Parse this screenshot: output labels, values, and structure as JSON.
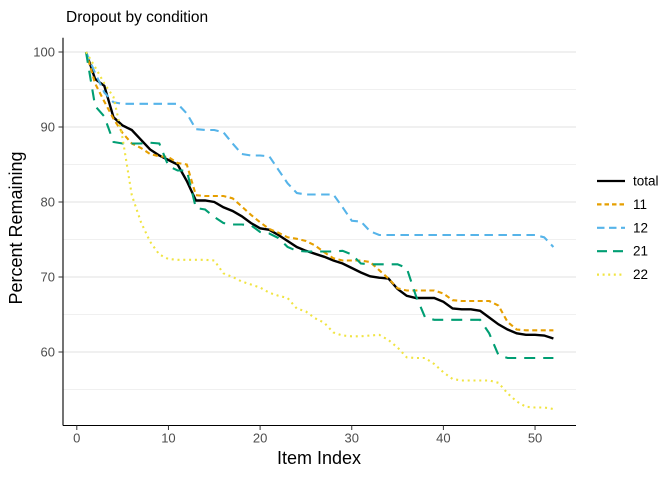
{
  "chart_data": {
    "type": "line",
    "title": "Dropout by condition",
    "xlabel": "Item Index",
    "ylabel": "Percent Remaining",
    "x_ticks": [
      0,
      10,
      20,
      30,
      40,
      50
    ],
    "y_ticks": [
      100,
      90,
      80,
      70,
      60
    ],
    "y_minor_gridlines": [
      95,
      85,
      75,
      65,
      55
    ],
    "xlim": [
      -1.5,
      54.5
    ],
    "ylim": [
      50.2,
      101.9
    ],
    "grid": "horizontal-only",
    "legend_position": "right-center",
    "x_start_index": 1,
    "legend_labels": [
      "total",
      "11",
      "12",
      "21",
      "22"
    ],
    "series": [
      {
        "name": "total",
        "color": "#000000",
        "linestyle": "solid",
        "values": [
          100,
          96.4,
          95.5,
          91.3,
          90.2,
          89.6,
          88.3,
          87.0,
          86.2,
          85.6,
          85.0,
          82.8,
          80.2,
          80.2,
          80.0,
          79.3,
          78.8,
          78.1,
          77.2,
          76.5,
          76.3,
          75.6,
          74.8,
          74.0,
          73.5,
          73.1,
          72.7,
          72.2,
          71.8,
          71.2,
          70.6,
          70.1,
          69.9,
          69.8,
          68.4,
          67.5,
          67.2,
          67.2,
          67.2,
          66.7,
          65.8,
          65.7,
          65.7,
          65.5,
          64.6,
          63.7,
          63.0,
          62.5,
          62.3,
          62.3,
          62.2,
          61.8
        ]
      },
      {
        "name": "11",
        "color": "#E69F00",
        "linestyle": "dashed",
        "values": [
          100,
          95.8,
          93.4,
          91.1,
          89.2,
          87.8,
          87.2,
          86.4,
          86.1,
          86.0,
          85.2,
          85.0,
          80.9,
          80.8,
          80.8,
          80.8,
          80.5,
          79.4,
          78.3,
          77.3,
          76.4,
          75.9,
          75.3,
          75.1,
          74.8,
          74.2,
          73.3,
          72.5,
          72.2,
          72.2,
          72.2,
          72.0,
          70.9,
          69.8,
          68.5,
          68.2,
          68.2,
          68.2,
          68.2,
          67.8,
          66.9,
          66.8,
          66.8,
          66.8,
          66.8,
          66.2,
          64.0,
          63.0,
          62.9,
          62.9,
          62.9,
          62.9
        ]
      },
      {
        "name": "12",
        "color": "#56B4E9",
        "linestyle": "longdash",
        "values": [
          100,
          97.2,
          94.6,
          93.3,
          93.1,
          93.1,
          93.1,
          93.1,
          93.1,
          93.1,
          93.1,
          91.8,
          89.7,
          89.6,
          89.6,
          89.3,
          87.8,
          86.4,
          86.2,
          86.2,
          86.1,
          84.3,
          82.5,
          81.2,
          81.0,
          81.0,
          81.0,
          81.0,
          79.3,
          77.5,
          77.4,
          76.1,
          75.6,
          75.6,
          75.6,
          75.6,
          75.6,
          75.6,
          75.6,
          75.6,
          75.6,
          75.6,
          75.6,
          75.6,
          75.6,
          75.6,
          75.6,
          75.6,
          75.6,
          75.6,
          75.3,
          74.0
        ]
      },
      {
        "name": "21",
        "color": "#009E73",
        "linestyle": "longdash-wide",
        "values": [
          100,
          92.8,
          91.4,
          88.0,
          87.8,
          87.8,
          87.8,
          87.9,
          87.8,
          84.8,
          84.2,
          84.2,
          79.2,
          79.0,
          78.0,
          77.2,
          77.0,
          77.0,
          76.9,
          76.0,
          75.8,
          75.2,
          74.0,
          73.5,
          73.4,
          73.4,
          73.4,
          73.4,
          73.5,
          73.0,
          71.8,
          71.7,
          71.7,
          71.7,
          71.7,
          71.2,
          67.5,
          64.6,
          64.3,
          64.3,
          64.3,
          64.3,
          64.3,
          64.3,
          62.5,
          59.6,
          59.2,
          59.2,
          59.2,
          59.2,
          59.2,
          59.2
        ]
      },
      {
        "name": "22",
        "color": "#F0E442",
        "linestyle": "dotted",
        "values": [
          100,
          98.0,
          95.8,
          94.0,
          88.5,
          80.9,
          77.3,
          74.7,
          73.0,
          72.4,
          72.3,
          72.3,
          72.3,
          72.3,
          72.2,
          70.5,
          70.0,
          69.4,
          69.0,
          68.6,
          67.9,
          67.5,
          67.2,
          65.8,
          65.4,
          64.5,
          63.9,
          62.6,
          62.2,
          62.1,
          62.1,
          62.2,
          62.3,
          61.6,
          60.6,
          59.3,
          59.2,
          59.2,
          58.4,
          57.3,
          56.4,
          56.2,
          56.2,
          56.2,
          56.2,
          55.9,
          54.5,
          53.4,
          52.7,
          52.6,
          52.6,
          52.4
        ]
      }
    ]
  }
}
